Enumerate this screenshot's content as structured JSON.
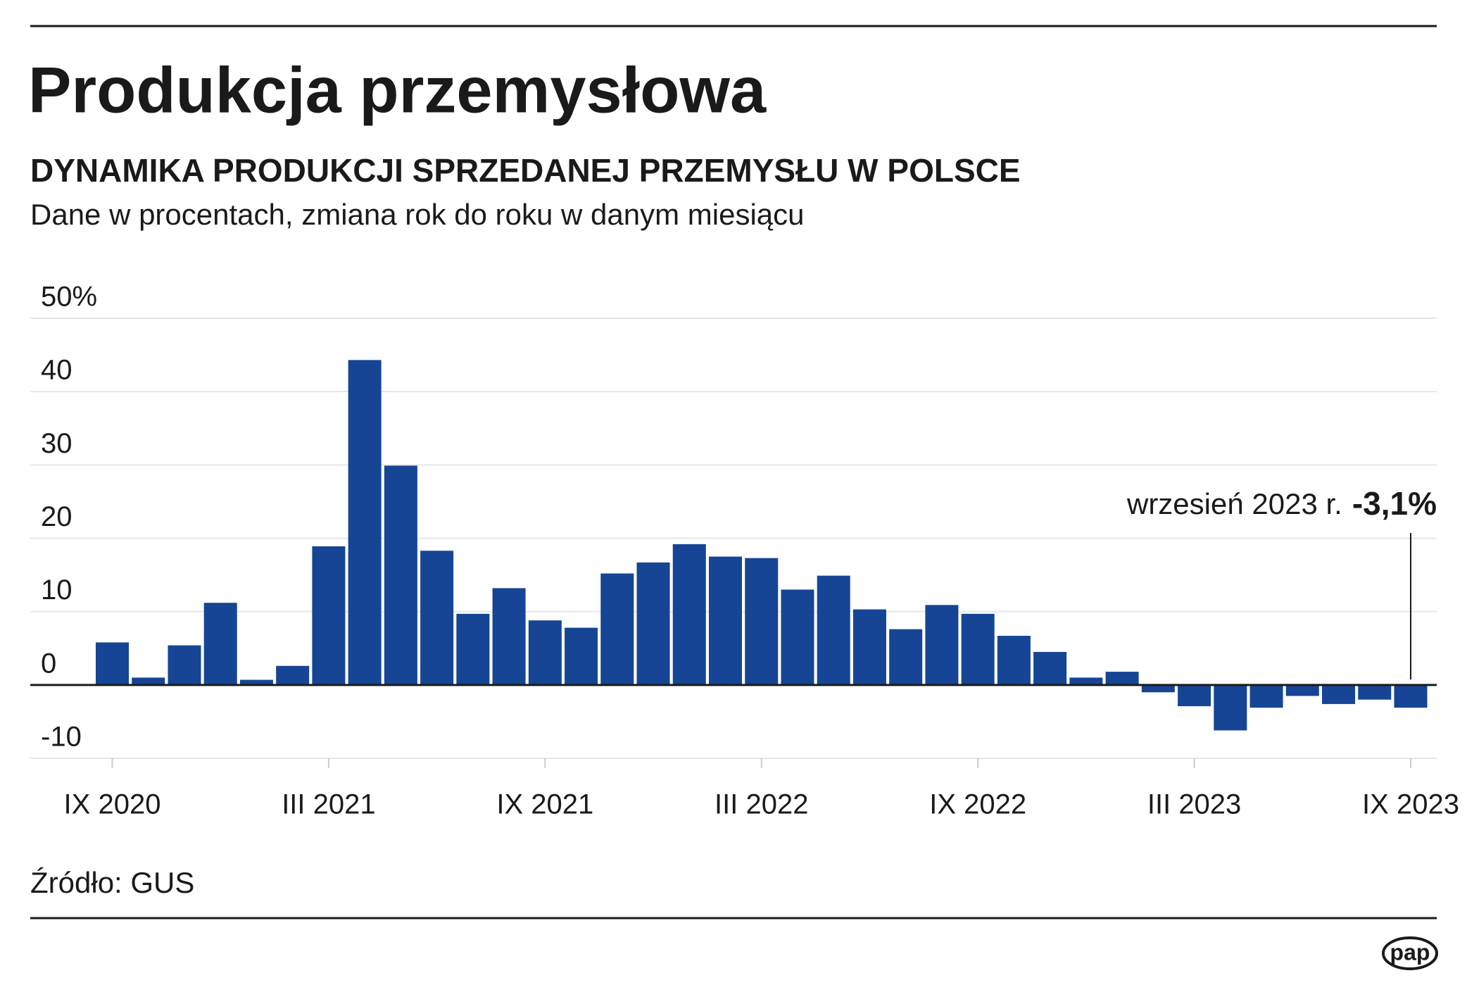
{
  "chart_data": {
    "type": "bar",
    "title": "Produkcja przemysłowa",
    "subtitle": "DYNAMIKA PRODUKCJI SPRZEDANEJ PRZEMYSŁU W POLSCE",
    "description": "Dane w procentach, zmiana rok do roku w danym miesiącu",
    "categories": [
      "IX 2020",
      null,
      null,
      null,
      null,
      null,
      "III 2021",
      null,
      null,
      null,
      null,
      null,
      "IX 2021",
      null,
      null,
      null,
      null,
      null,
      "III 2022",
      null,
      null,
      null,
      null,
      null,
      "IX 2022",
      null,
      null,
      null,
      null,
      null,
      "III 2023",
      null,
      null,
      null,
      null,
      null,
      "IX 2023"
    ],
    "values": [
      5.8,
      1.0,
      5.4,
      11.2,
      0.7,
      2.6,
      18.9,
      44.3,
      29.9,
      18.3,
      9.7,
      13.2,
      8.8,
      7.8,
      15.2,
      16.7,
      19.2,
      17.5,
      17.3,
      13.0,
      14.9,
      10.3,
      7.6,
      10.9,
      9.7,
      6.7,
      4.5,
      1.0,
      1.8,
      -1.0,
      -2.9,
      -6.2,
      -3.1,
      -1.5,
      -2.6,
      -2.0,
      -3.1
    ],
    "color": "#154594",
    "ylim": [
      -10,
      50
    ],
    "yticks": [
      -10,
      0,
      10,
      20,
      30,
      40,
      {
        "value": 50,
        "label": "50%"
      }
    ],
    "grid": true,
    "annotation": {
      "text": "wrzesień 2023 r.",
      "value_text": "-3,1%"
    },
    "source": "Źródło: GUS",
    "logo": "pap"
  }
}
